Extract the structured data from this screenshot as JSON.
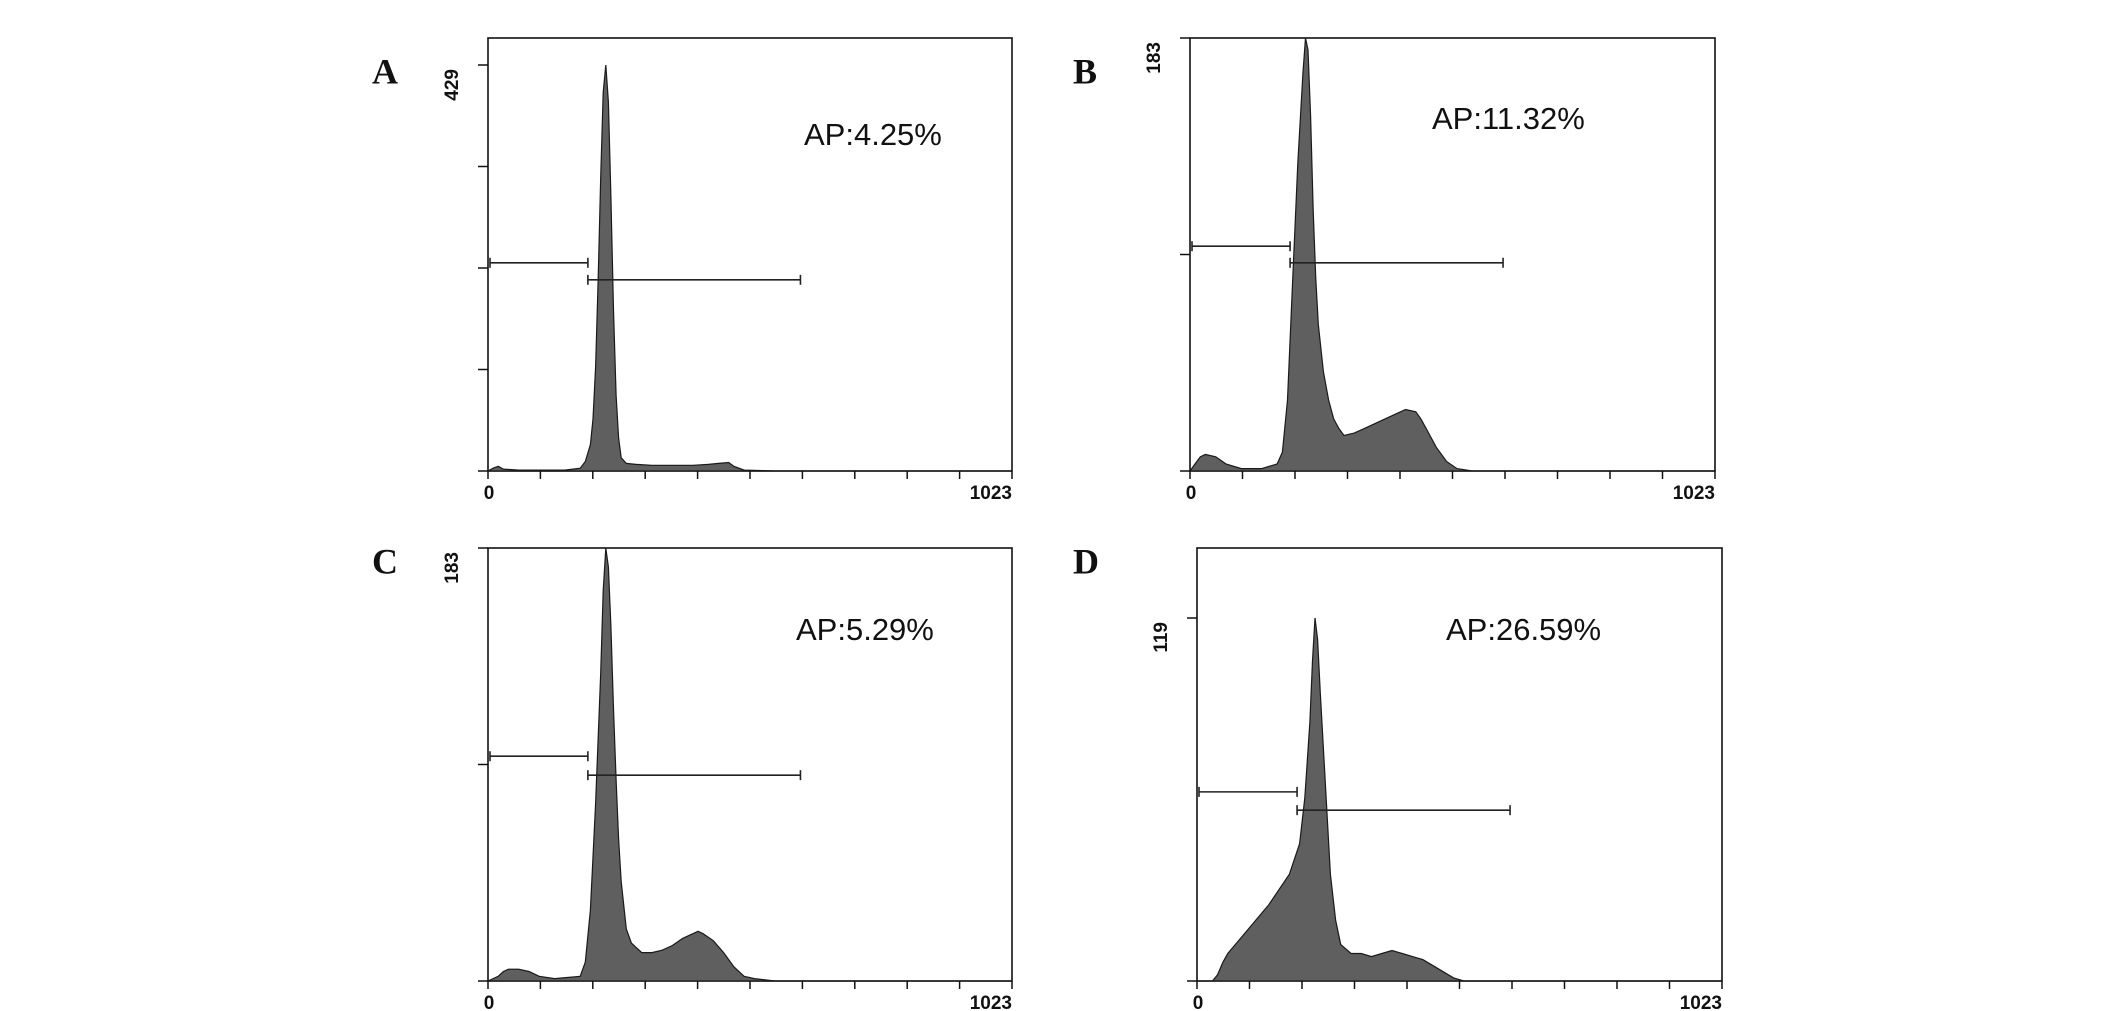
{
  "chart_data": [
    {
      "type": "area",
      "panel": "A",
      "fill": "#5f5f5f",
      "annotation": "AP:4.25%",
      "xlim": [
        0,
        1023
      ],
      "ylim": [
        0,
        429
      ],
      "x_tick_labels": [
        "0",
        "1023"
      ],
      "y_tick_labels": [
        "429"
      ],
      "x": [
        0,
        10,
        20,
        30,
        60,
        100,
        150,
        180,
        190,
        200,
        205,
        210,
        215,
        220,
        225,
        230,
        235,
        240,
        245,
        250,
        255,
        260,
        270,
        290,
        320,
        360,
        400,
        430,
        450,
        470,
        480,
        500,
        560,
        650,
        800,
        1023
      ],
      "y": [
        0,
        3,
        5,
        2,
        1,
        1,
        1,
        3,
        10,
        28,
        55,
        110,
        200,
        310,
        400,
        429,
        390,
        290,
        170,
        80,
        35,
        14,
        8,
        7,
        6,
        6,
        6,
        7,
        8,
        9,
        5,
        1,
        0,
        0,
        0,
        0
      ],
      "gates": [
        {
          "x1": 0,
          "x2": 195,
          "y": 220
        },
        {
          "x1": 195,
          "x2": 610,
          "y": 202
        }
      ]
    },
    {
      "type": "area",
      "panel": "B",
      "fill": "#5f5f5f",
      "annotation": "AP:11.32%",
      "xlim": [
        0,
        1023
      ],
      "ylim": [
        0,
        183
      ],
      "x_tick_labels": [
        "0",
        "1023"
      ],
      "y_tick_labels": [
        "183"
      ],
      "x": [
        0,
        10,
        20,
        30,
        50,
        70,
        100,
        140,
        170,
        180,
        190,
        200,
        210,
        220,
        225,
        230,
        235,
        240,
        245,
        250,
        260,
        270,
        280,
        290,
        300,
        320,
        340,
        360,
        380,
        400,
        420,
        440,
        450,
        460,
        480,
        500,
        520,
        550,
        600,
        800,
        1023
      ],
      "y": [
        0,
        3,
        6,
        7,
        6,
        3,
        1,
        1,
        3,
        8,
        30,
        80,
        130,
        168,
        183,
        178,
        150,
        110,
        82,
        62,
        42,
        30,
        22,
        18,
        15,
        16,
        18,
        20,
        22,
        24,
        26,
        25,
        22,
        18,
        10,
        4,
        1,
        0,
        0,
        0,
        0
      ],
      "gates": [
        {
          "x1": 0,
          "x2": 195,
          "y": 95
        },
        {
          "x1": 195,
          "x2": 610,
          "y": 88
        }
      ]
    },
    {
      "type": "area",
      "panel": "C",
      "fill": "#5f5f5f",
      "annotation": "AP:5.29%",
      "xlim": [
        0,
        1023
      ],
      "ylim": [
        0,
        183
      ],
      "x_tick_labels": [
        "0",
        "1023"
      ],
      "y_tick_labels": [
        "183"
      ],
      "x": [
        0,
        20,
        30,
        40,
        60,
        80,
        100,
        130,
        180,
        190,
        200,
        210,
        220,
        225,
        230,
        235,
        240,
        245,
        250,
        255,
        260,
        270,
        280,
        300,
        320,
        340,
        360,
        380,
        400,
        410,
        420,
        440,
        460,
        480,
        500,
        520,
        560,
        800,
        1023
      ],
      "y": [
        0,
        2,
        4,
        5,
        5,
        4,
        2,
        1,
        2,
        8,
        30,
        75,
        130,
        165,
        183,
        175,
        150,
        115,
        85,
        60,
        42,
        22,
        16,
        12,
        12,
        13,
        15,
        18,
        20,
        21,
        20,
        17,
        12,
        6,
        2,
        1,
        0,
        0,
        0
      ],
      "gates": [
        {
          "x1": 0,
          "x2": 195,
          "y": 95
        },
        {
          "x1": 195,
          "x2": 610,
          "y": 87
        }
      ]
    },
    {
      "type": "area",
      "panel": "D",
      "fill": "#5f5f5f",
      "annotation": "AP:26.59%",
      "xlim": [
        0,
        1023
      ],
      "ylim": [
        0,
        119
      ],
      "x_tick_labels": [
        "0",
        "1023"
      ],
      "y_tick_labels": [
        "119"
      ],
      "x": [
        0,
        30,
        40,
        50,
        60,
        80,
        100,
        120,
        140,
        160,
        180,
        200,
        210,
        220,
        225,
        230,
        235,
        240,
        250,
        260,
        270,
        280,
        300,
        320,
        340,
        360,
        380,
        400,
        420,
        440,
        460,
        480,
        500,
        520,
        600,
        800,
        1023
      ],
      "y": [
        0,
        0,
        2,
        6,
        9,
        13,
        17,
        21,
        25,
        30,
        35,
        45,
        60,
        85,
        105,
        119,
        112,
        95,
        65,
        35,
        20,
        12,
        9,
        9,
        8,
        9,
        10,
        9,
        8,
        7,
        5,
        3,
        1,
        0,
        0,
        0,
        0
      ],
      "gates": [
        {
          "x1": 0,
          "x2": 195,
          "y": 62
        },
        {
          "x1": 195,
          "x2": 610,
          "y": 56
        }
      ]
    }
  ]
}
